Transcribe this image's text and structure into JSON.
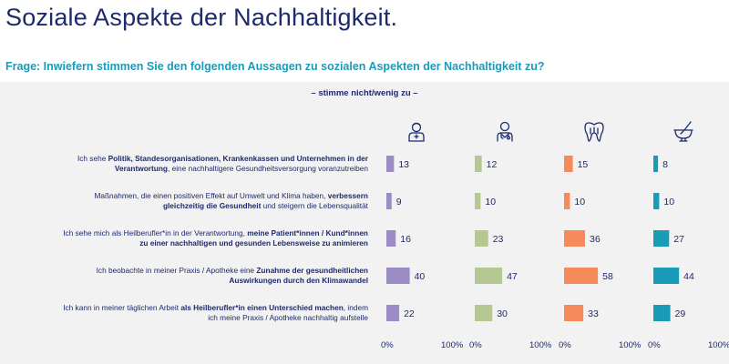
{
  "title": "Soziale Aspekte der Nachhaltigkeit.",
  "question": "Frage: Inwiefern stimmen Sie den folgenden Aussagen zu sozialen Aspekten der Nachhaltigkeit zu?",
  "icons": [
    "doctor-icon",
    "pharmacist-icon",
    "tooth-icon",
    "mortar-pestle-icon"
  ],
  "colors": {
    "title": "#1d2a6b",
    "question": "#1a9bb7",
    "panel": "#f2f2f2",
    "series": [
      "#9b8cc4",
      "#b5c792",
      "#f78a5a",
      "#1a9bb7"
    ]
  },
  "chart_data": {
    "type": "bar",
    "orientation": "horizontal",
    "subtitle": "– stimme nicht/wenig zu –",
    "categories": [
      "Ich sehe Politik, Standesorganisationen, Krankenkassen und Unternehmen in der Verantwortung, eine nachhaltigere Gesundheitsversorgung voranzutreiben",
      "Maßnahmen, die einen positiven Effekt auf Umwelt und Klima haben, verbessern gleichzeitig die Gesundheit und steigern die Lebensqualität",
      "Ich sehe mich als Heilberufler*in in der Verantwortung, meine Patient*innen / Kund*innen zu einer nachhaltigen und gesunden Lebensweise zu animieren",
      "Ich beobachte in meiner Praxis / Apotheke eine Zunahme der gesundheitlichen Auswirkungen durch den Klimawandel",
      "Ich kann in meiner täglichen Arbeit als Heilberufler*in einen Unterschied machen, indem ich meine Praxis / Apotheke nachhaltig aufstelle"
    ],
    "category_lines": [
      [
        [
          {
            "t": "Ich sehe ",
            "b": false
          },
          {
            "t": "Politik, Standesorganisationen, Krankenkassen und Unternehmen in der",
            "b": true
          }
        ],
        [
          {
            "t": "Verantwortung",
            "b": true
          },
          {
            "t": ", eine nachhaltigere Gesundheitsversorgung voranzutreiben",
            "b": false
          }
        ]
      ],
      [
        [
          {
            "t": "Maßnahmen, die einen positiven Effekt auf Umwelt und Klima haben, ",
            "b": false
          },
          {
            "t": "verbessern",
            "b": true
          }
        ],
        [
          {
            "t": "gleichzeitig die Gesundheit",
            "b": true
          },
          {
            "t": " und steigern die Lebensqualität",
            "b": false
          }
        ]
      ],
      [
        [
          {
            "t": "Ich sehe mich als Heilberufler*in in der Verantwortung, ",
            "b": false
          },
          {
            "t": "meine Patient*innen / Kund*innen",
            "b": true
          }
        ],
        [
          {
            "t": "zu einer nachhaltigen und gesunden Lebensweise zu animieren",
            "b": true
          }
        ]
      ],
      [
        [
          {
            "t": "Ich beobachte in meiner Praxis / Apotheke eine ",
            "b": false
          },
          {
            "t": "Zunahme der gesundheitlichen",
            "b": true
          }
        ],
        [
          {
            "t": "Auswirkungen durch den Klimawandel",
            "b": true
          }
        ]
      ],
      [
        [
          {
            "t": "Ich kann in meiner täglichen Arbeit ",
            "b": false
          },
          {
            "t": "als Heilberufler*in einen Unterschied machen",
            "b": true
          },
          {
            "t": ", indem",
            "b": false
          }
        ],
        [
          {
            "t": "ich meine Praxis / Apotheke nachhaltig aufstelle",
            "b": false
          }
        ]
      ]
    ],
    "series": [
      {
        "values": [
          13,
          9,
          16,
          40,
          22
        ]
      },
      {
        "values": [
          12,
          10,
          23,
          47,
          30
        ]
      },
      {
        "values": [
          15,
          10,
          36,
          58,
          33
        ]
      },
      {
        "values": [
          8,
          10,
          27,
          44,
          29
        ]
      }
    ],
    "xlim": [
      0,
      100
    ],
    "x_tick_labels": [
      "0%",
      "100%"
    ],
    "unit": "%",
    "grid": false,
    "legend": "none"
  }
}
